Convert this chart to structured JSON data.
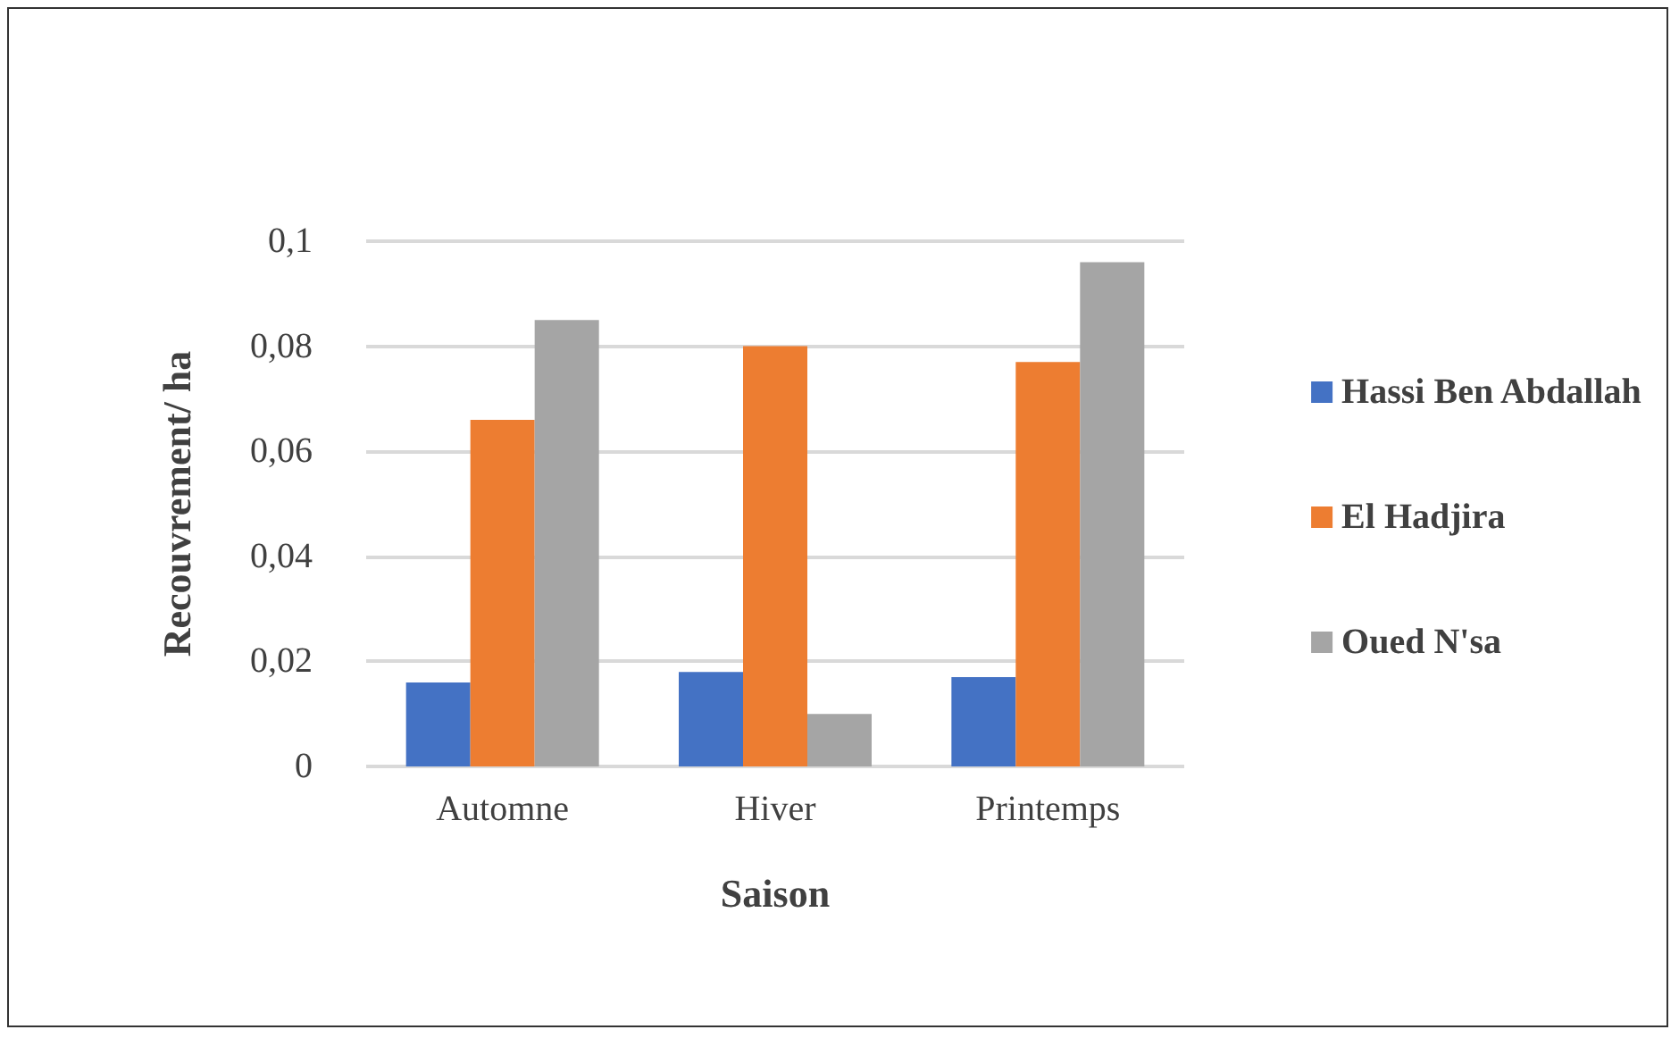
{
  "chart_data": {
    "type": "bar",
    "xlabel": "Saison",
    "ylabel": "Recouvrement/ ha",
    "categories": [
      "Automne",
      "Hiver",
      "Printemps"
    ],
    "series": [
      {
        "name": "Hassi Ben Abdallah",
        "color": "#4472c4",
        "values": [
          0.016,
          0.018,
          0.017
        ]
      },
      {
        "name": "El Hadjira",
        "color": "#ed7d31",
        "values": [
          0.066,
          0.08,
          0.077
        ]
      },
      {
        "name": "Oued N'sa",
        "color": "#a5a5a5",
        "values": [
          0.085,
          0.01,
          0.096
        ]
      }
    ],
    "ylim": [
      0,
      0.1
    ],
    "yticks": [
      0,
      {
        "value": 0.02,
        "label": "0,02"
      },
      {
        "value": 0.04,
        "label": "0,04"
      },
      {
        "value": 0.06,
        "label": "0,06"
      },
      {
        "value": 0.08,
        "label": "0,08"
      },
      {
        "value": 0.1,
        "label": "0,1"
      }
    ],
    "grid": "y",
    "legend": "right"
  }
}
